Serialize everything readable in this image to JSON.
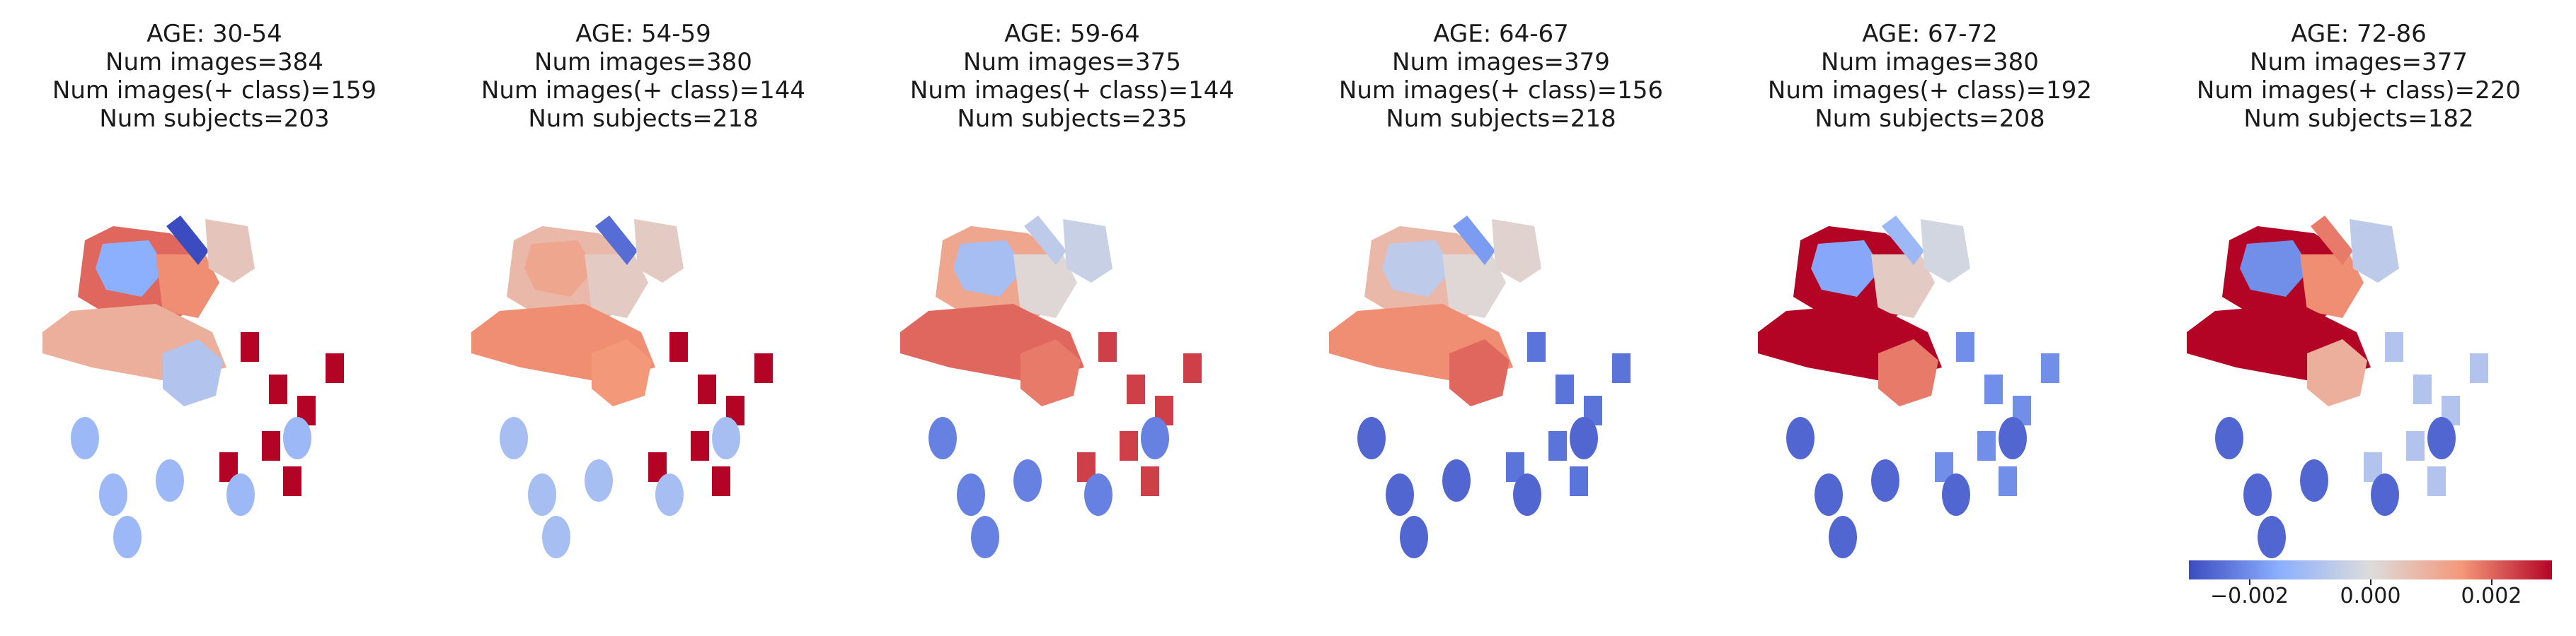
{
  "panels": [
    {
      "age": "AGE: 30-54",
      "images": "Num images=384",
      "pos": "Num images(+ class)=159",
      "subjects": "Num subjects=203",
      "regions": {
        "frontal": 0.002,
        "insula": -0.0015,
        "temporal": 0.0016,
        "occipital": 0.001,
        "motor": -0.0032,
        "sup": 0.0005,
        "spots": 0.003,
        "cere": -0.0012,
        "basal": -0.0008
      }
    },
    {
      "age": "AGE: 54-59",
      "images": "Num images=380",
      "pos": "Num images(+ class)=144",
      "subjects": "Num subjects=218",
      "regions": {
        "frontal": 0.0008,
        "insula": 0.0012,
        "temporal": 0.0004,
        "occipital": 0.0016,
        "motor": -0.0025,
        "sup": 0.0004,
        "spots": 0.003,
        "cere": -0.001,
        "basal": 0.0015
      }
    },
    {
      "age": "AGE: 59-64",
      "images": "Num images=375",
      "pos": "Num images(+ class)=144",
      "subjects": "Num subjects=235",
      "regions": {
        "frontal": 0.0012,
        "insula": -0.001,
        "temporal": 0.0001,
        "occipital": 0.002,
        "motor": -0.0006,
        "sup": -0.0004,
        "spots": 0.0024,
        "cere": -0.0022,
        "basal": 0.0018
      }
    },
    {
      "age": "AGE: 64-67",
      "images": "Num images=379",
      "pos": "Num images(+ class)=156",
      "subjects": "Num subjects=218",
      "regions": {
        "frontal": 0.0008,
        "insula": -0.0006,
        "temporal": 0.0001,
        "occipital": 0.0016,
        "motor": -0.0018,
        "sup": 0.0002,
        "spots": -0.0024,
        "cere": -0.0026,
        "basal": 0.002
      }
    },
    {
      "age": "AGE: 67-72",
      "images": "Num images=380",
      "pos": "Num images(+ class)=192",
      "subjects": "Num subjects=208",
      "regions": {
        "frontal": 0.003,
        "insula": -0.0016,
        "temporal": 0.0004,
        "occipital": 0.003,
        "motor": -0.0012,
        "sup": -0.0002,
        "spots": -0.002,
        "cere": -0.0026,
        "basal": 0.0018
      }
    },
    {
      "age": "AGE: 72-86",
      "images": "Num images=377",
      "pos": "Num images(+ class)=220",
      "subjects": "Num subjects=182",
      "regions": {
        "frontal": 0.003,
        "insula": -0.002,
        "temporal": 0.0016,
        "occipital": 0.003,
        "motor": 0.0018,
        "sup": -0.0006,
        "spots": -0.0008,
        "cere": -0.0026,
        "basal": 0.001
      }
    }
  ],
  "colorbar": {
    "min": -0.003,
    "max": 0.003,
    "ticks": [
      {
        "value": -0.002,
        "label": "−0.002"
      },
      {
        "value": 0.0,
        "label": "0.000"
      },
      {
        "value": 0.002,
        "label": "0.002"
      }
    ],
    "colors": [
      "#3b4cc0",
      "#b40426"
    ]
  }
}
